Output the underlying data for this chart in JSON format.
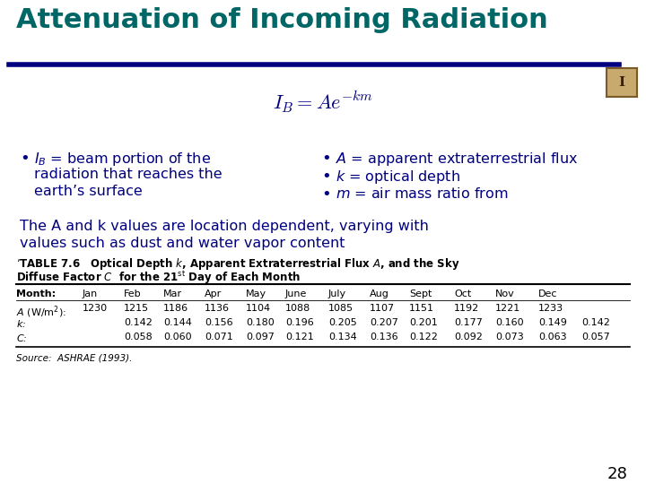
{
  "title": "Attenuation of Incoming Radiation",
  "title_color": "#006666",
  "title_fontsize": 22,
  "divider_color": "#000080",
  "bg_color": "#ffffff",
  "formula": "$I_B = Ae^{-km}$",
  "bullet_left_line1": "$I_B$ = beam portion of the",
  "bullet_left_line2": "radiation that reaches the",
  "bullet_left_line3": "earth’s surface",
  "bullet_right_line1": "$A$ = apparent extraterrestrial flux",
  "bullet_right_line2": "$k$ = optical depth",
  "bullet_right_line3": "$m$ = air mass ratio from",
  "note_line1": "The A and k values are location dependent, varying with",
  "note_line2": "values such as dust and water vapor content",
  "table_caption_line1": "’TABLE 7.6   Optical Depth $k$, Apparent Extraterrestrial Flux $A$, and the Sky",
  "table_caption_line2": "Diffuse Factor $C$  for the 21$^\\mathrm{st}$ Day of Each Month",
  "col_headers": [
    "Month:",
    "Jan",
    "Feb",
    "Mar",
    "Apr",
    "May",
    "June",
    "July",
    "Aug",
    "Sept",
    "Oct",
    "Nov",
    "Dec"
  ],
  "row_A_label": "$A$ (W/m$^2$):",
  "row_A_vals": [
    "1230",
    "1215",
    "1186",
    "1136",
    "1104",
    "1088",
    "1085",
    "1107",
    "1151",
    "1192",
    "1221",
    "1233"
  ],
  "row_k_label": "$k$:",
  "row_k_vals": [
    "0.142",
    "0.144",
    "0.156",
    "0.180",
    "0.196",
    "0.205",
    "0.207",
    "0.201",
    "0.177",
    "0.160",
    "0.149",
    "0.142"
  ],
  "row_C_label": "$C$:",
  "row_C_vals": [
    "0.058",
    "0.060",
    "0.071",
    "0.097",
    "0.121",
    "0.134",
    "0.136",
    "0.122",
    "0.092",
    "0.073",
    "0.063",
    "0.057"
  ],
  "source": "Source:  ASHRAE (1993).",
  "page_num": "28",
  "text_color": "#000080"
}
